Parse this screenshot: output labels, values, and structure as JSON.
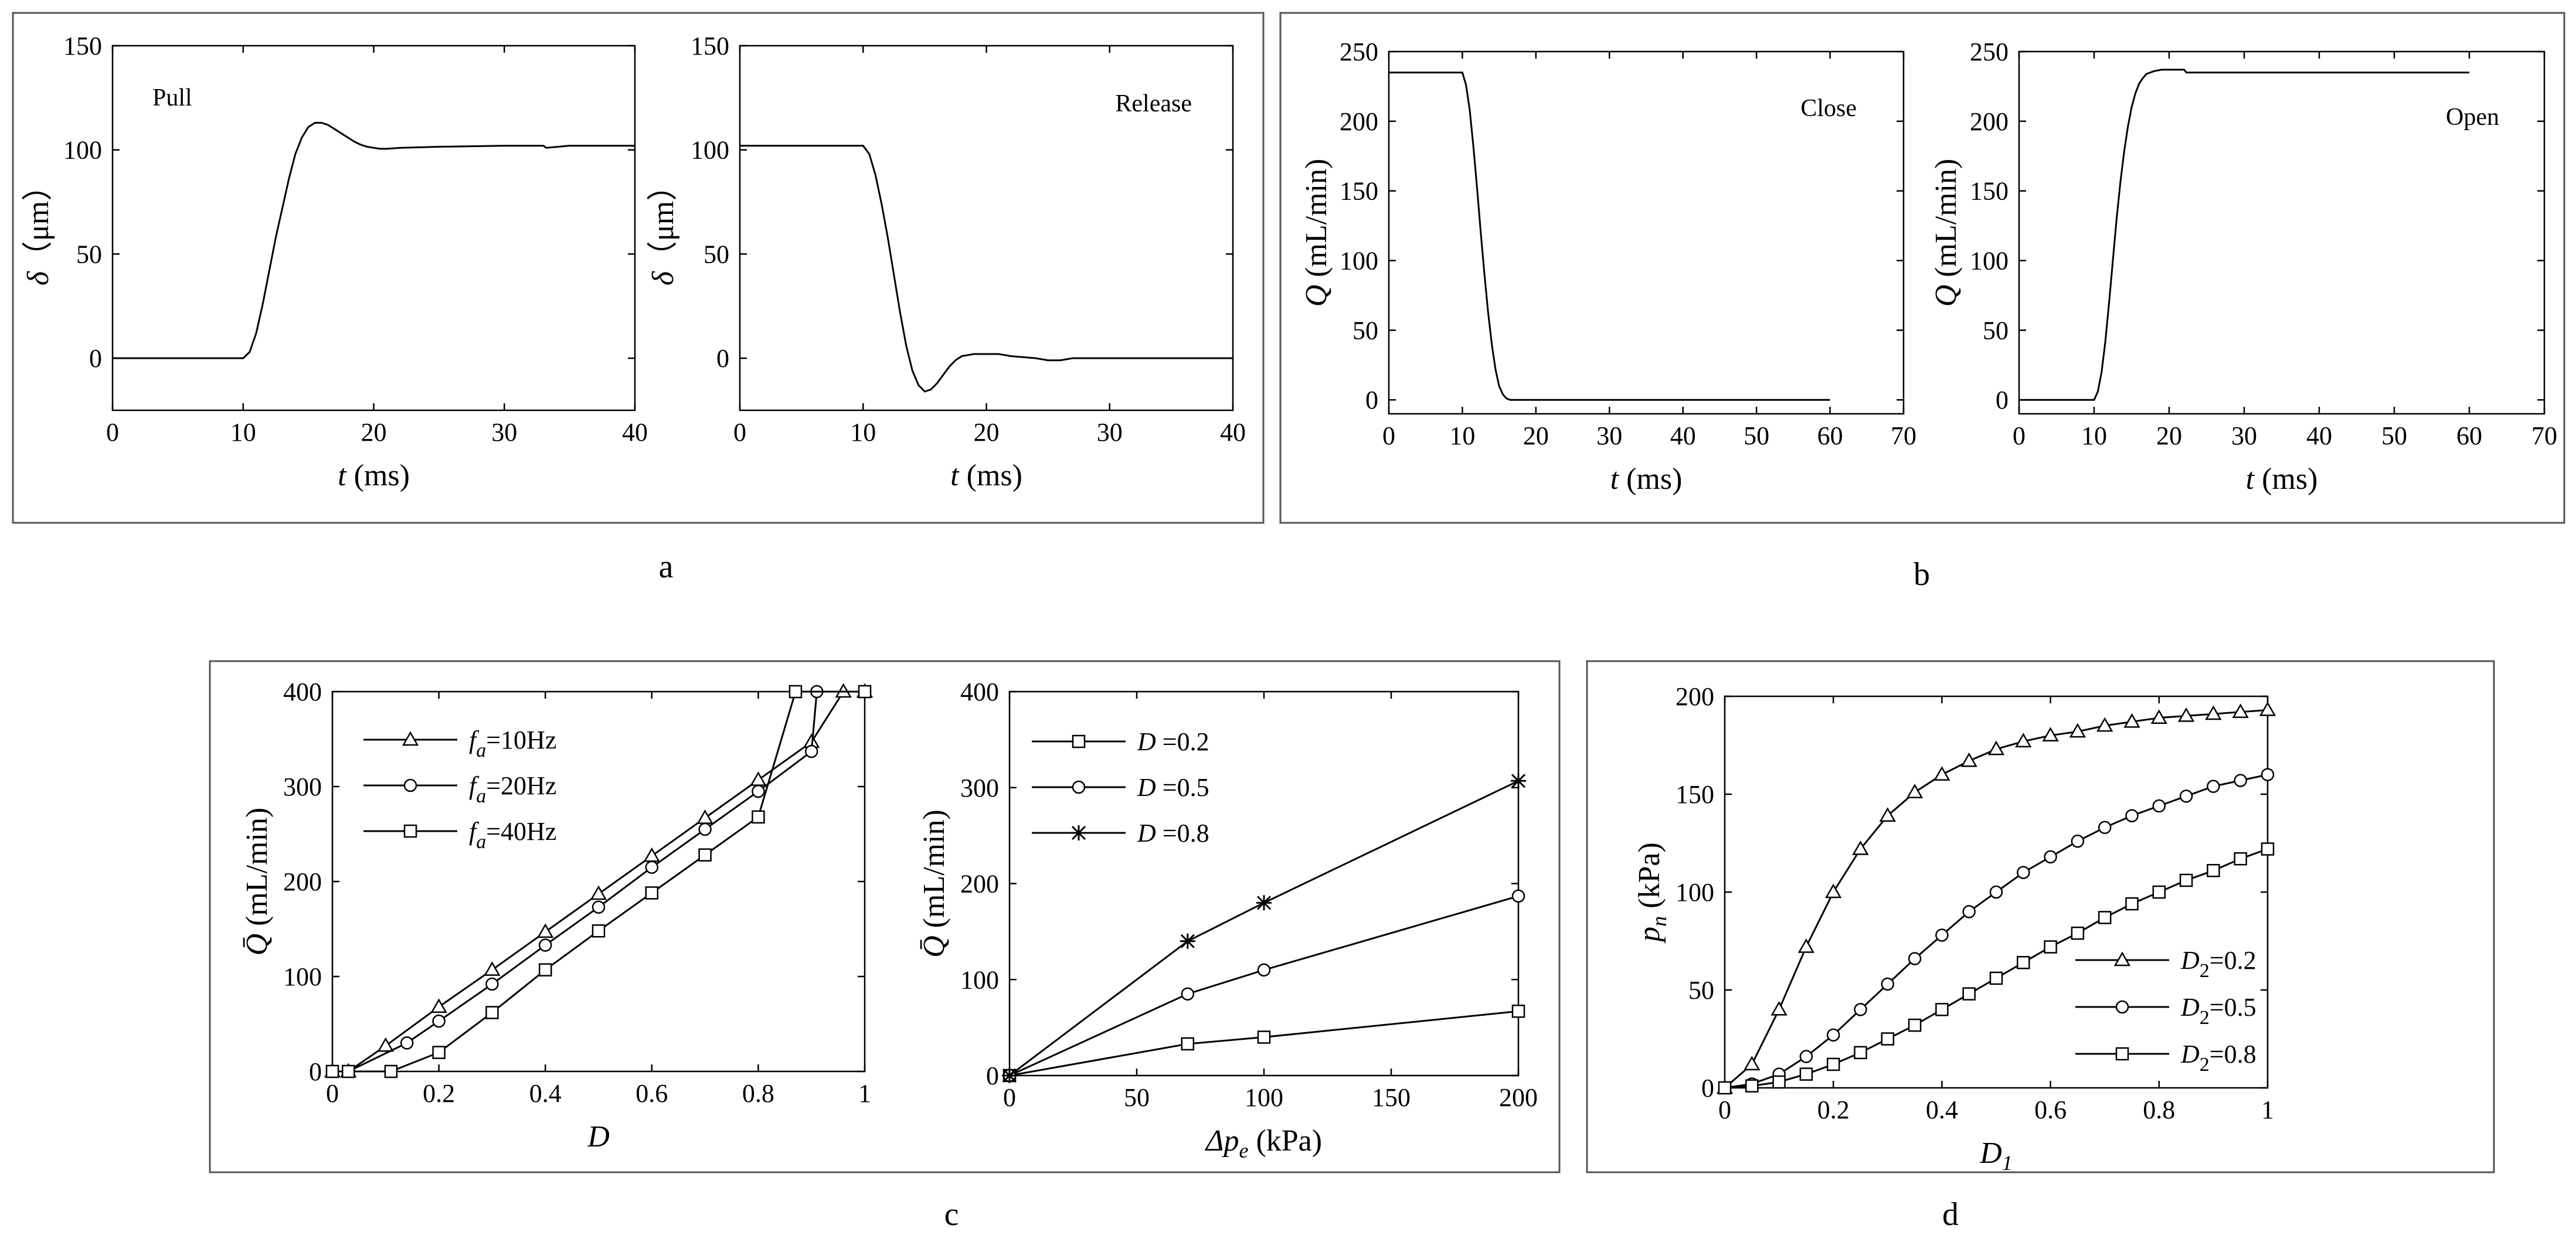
{
  "panel_letters": {
    "a": "a",
    "b": "b",
    "c": "c",
    "d": "d"
  },
  "chart_data": [
    {
      "id": "a1",
      "type": "line",
      "panel": "a",
      "xlabel": {
        "var": "t",
        "unit": " (ms)"
      },
      "ylabel": {
        "var": "δ",
        "unit": "（μm）"
      },
      "annotation": "Pull",
      "xlim": [
        0,
        40
      ],
      "ylim": [
        -25,
        150
      ],
      "xticks": [
        0,
        10,
        20,
        30,
        40
      ],
      "yticks": [
        0,
        50,
        100,
        150
      ],
      "series": [
        {
          "name": "δ",
          "x": [
            0,
            10,
            10.5,
            11,
            11.5,
            12,
            12.5,
            13,
            13.5,
            14,
            14.5,
            15,
            15.5,
            16,
            16.5,
            17,
            17.5,
            18,
            18.5,
            19,
            19.5,
            20,
            20.5,
            21,
            22,
            25,
            30,
            33,
            33.2,
            35,
            40
          ],
          "y": [
            0,
            0,
            3,
            12,
            26,
            42,
            58,
            72,
            86,
            98,
            106,
            111,
            113,
            113,
            112,
            110,
            108,
            106,
            104,
            102.5,
            101.5,
            101,
            100.5,
            100.5,
            101,
            101.5,
            102,
            102,
            101,
            102,
            102
          ]
        }
      ]
    },
    {
      "id": "a2",
      "type": "line",
      "panel": "a",
      "xlabel": {
        "var": "t",
        "unit": " (ms)"
      },
      "ylabel": {
        "var": "δ",
        "unit": "（μm）"
      },
      "annotation": "Release",
      "xlim": [
        0,
        40
      ],
      "ylim": [
        -25,
        150
      ],
      "xticks": [
        0,
        10,
        20,
        30,
        40
      ],
      "yticks": [
        0,
        50,
        100,
        150
      ],
      "series": [
        {
          "name": "δ",
          "x": [
            0,
            10,
            10.5,
            11,
            11.5,
            12,
            12.5,
            13,
            13.5,
            14,
            14.5,
            15,
            15.5,
            16,
            16.5,
            17,
            17.5,
            18,
            19,
            20,
            21,
            22,
            23,
            24,
            25,
            26,
            27,
            30,
            35,
            40
          ],
          "y": [
            102,
            102,
            98,
            88,
            74,
            58,
            40,
            22,
            6,
            -6,
            -13,
            -16,
            -15,
            -12,
            -8,
            -4,
            -1,
            1,
            2,
            2,
            2,
            1,
            0.5,
            0,
            -1,
            -1,
            0,
            0,
            0,
            0
          ]
        }
      ]
    },
    {
      "id": "b1",
      "type": "line",
      "panel": "b",
      "xlabel": {
        "var": "t",
        "unit": " (ms)"
      },
      "ylabel": {
        "var": "Q",
        "unit": " (mL/min)"
      },
      "annotation": "Close",
      "xlim": [
        0,
        70
      ],
      "ylim": [
        -10,
        250
      ],
      "xticks": [
        0,
        10,
        20,
        30,
        40,
        50,
        60,
        70
      ],
      "yticks": [
        0,
        50,
        100,
        150,
        200,
        250
      ],
      "series": [
        {
          "name": "Q",
          "x": [
            0,
            10,
            10.5,
            11,
            11.5,
            12,
            12.5,
            13,
            13.5,
            14,
            14.5,
            15,
            15.5,
            16,
            16.5,
            17,
            18,
            20,
            30,
            40,
            50,
            60
          ],
          "y": [
            235,
            235,
            226,
            208,
            182,
            152,
            120,
            90,
            63,
            40,
            22,
            10,
            4,
            1,
            0,
            0,
            0,
            0,
            0,
            0,
            0,
            0
          ]
        }
      ]
    },
    {
      "id": "b2",
      "type": "line",
      "panel": "b",
      "xlabel": {
        "var": "t",
        "unit": " (ms)"
      },
      "ylabel": {
        "var": "Q",
        "unit": " (mL/min)"
      },
      "annotation": "Open",
      "xlim": [
        0,
        70
      ],
      "ylim": [
        -10,
        250
      ],
      "xticks": [
        0,
        10,
        20,
        30,
        40,
        50,
        60,
        70
      ],
      "yticks": [
        0,
        50,
        100,
        150,
        200,
        250
      ],
      "series": [
        {
          "name": "Q",
          "x": [
            0,
            10,
            10.5,
            11,
            11.5,
            12,
            12.5,
            13,
            13.5,
            14,
            14.5,
            15,
            15.5,
            16,
            16.5,
            17,
            17.5,
            18,
            19,
            20,
            22,
            22.3,
            30,
            40,
            50,
            60
          ],
          "y": [
            0,
            0,
            6,
            20,
            42,
            70,
            100,
            130,
            156,
            178,
            196,
            210,
            220,
            227,
            231,
            234,
            235,
            236,
            237,
            237,
            237,
            235,
            235,
            235,
            235,
            235
          ]
        }
      ]
    },
    {
      "id": "c1",
      "type": "line",
      "panel": "c",
      "xlabel": {
        "var": "D",
        "unit": ""
      },
      "ylabel": {
        "var": "Q̄",
        "unit": " (mL/min)"
      },
      "xlim": [
        0,
        1
      ],
      "ylim": [
        0,
        400
      ],
      "xticks": [
        0,
        0.2,
        0.4,
        0.6,
        0.8,
        1
      ],
      "yticks": [
        0,
        100,
        200,
        300,
        400
      ],
      "legend_position": "top-left",
      "series": [
        {
          "name": "f_a=10Hz",
          "label_main": "f",
          "label_sub": "a",
          "label_rest": "=10Hz",
          "marker": "triangle",
          "x": [
            0,
            0.03,
            0.1,
            0.2,
            0.3,
            0.4,
            0.5,
            0.6,
            0.7,
            0.8,
            0.9,
            0.96,
            1.0
          ],
          "y": [
            0,
            0,
            27,
            68,
            107,
            147,
            187,
            227,
            267,
            307,
            347,
            400,
            400
          ]
        },
        {
          "name": "f_a=20Hz",
          "label_main": "f",
          "label_sub": "a",
          "label_rest": "=20Hz",
          "marker": "circle",
          "x": [
            0,
            0.03,
            0.14,
            0.2,
            0.3,
            0.4,
            0.5,
            0.6,
            0.7,
            0.8,
            0.9,
            0.91,
            1.0
          ],
          "y": [
            0,
            0,
            30,
            53,
            92,
            133,
            173,
            215,
            255,
            295,
            337,
            400,
            400
          ]
        },
        {
          "name": "f_a=40Hz",
          "label_main": "f",
          "label_sub": "a",
          "label_rest": "=40Hz",
          "marker": "square",
          "x": [
            0,
            0.03,
            0.11,
            0.2,
            0.3,
            0.4,
            0.5,
            0.6,
            0.7,
            0.8,
            0.87,
            1.0
          ],
          "y": [
            0,
            0,
            0,
            20,
            62,
            107,
            148,
            188,
            228,
            268,
            400,
            400
          ]
        }
      ]
    },
    {
      "id": "c2",
      "type": "line",
      "panel": "c",
      "xlabel": {
        "var": "Δp",
        "sub": "e",
        "unit": " (kPa)"
      },
      "ylabel": {
        "var": "Q̄",
        "unit": " (mL/min)"
      },
      "xlim": [
        0,
        200
      ],
      "ylim": [
        0,
        400
      ],
      "xticks": [
        0,
        50,
        100,
        150,
        200
      ],
      "yticks": [
        0,
        100,
        200,
        300,
        400
      ],
      "legend_position": "top-left",
      "series": [
        {
          "name": "D=0.2",
          "label_main": "D",
          "label_rest": " =0.2",
          "marker": "square",
          "x": [
            0,
            70,
            100,
            200
          ],
          "y": [
            0,
            33,
            40,
            67
          ]
        },
        {
          "name": "D=0.5",
          "label_main": "D",
          "label_rest": " =0.5",
          "marker": "circle",
          "x": [
            0,
            70,
            100,
            200
          ],
          "y": [
            0,
            85,
            110,
            187
          ]
        },
        {
          "name": "D=0.8",
          "label_main": "D",
          "label_rest": " =0.8",
          "marker": "star",
          "x": [
            0,
            70,
            100,
            200
          ],
          "y": [
            0,
            140,
            180,
            307
          ]
        }
      ]
    },
    {
      "id": "d1",
      "type": "line",
      "panel": "d",
      "xlabel": {
        "var": "D",
        "sub": "1",
        "unit": ""
      },
      "ylabel": {
        "var": "p",
        "sub": "n",
        "unit": " (kPa)"
      },
      "xlim": [
        0,
        1
      ],
      "ylim": [
        0,
        200
      ],
      "xticks": [
        0,
        0.2,
        0.4,
        0.6,
        0.8,
        1
      ],
      "yticks": [
        0,
        50,
        100,
        150,
        200
      ],
      "legend_position": "bottom-right",
      "series": [
        {
          "name": "D2=0.2",
          "label_main": "D",
          "label_sub": "2",
          "label_rest": "=0.2",
          "marker": "triangle",
          "x": [
            0,
            0.05,
            0.1,
            0.15,
            0.2,
            0.25,
            0.3,
            0.35,
            0.4,
            0.45,
            0.5,
            0.55,
            0.6,
            0.65,
            0.7,
            0.75,
            0.8,
            0.85,
            0.9,
            0.95,
            1.0
          ],
          "y": [
            0,
            12,
            40,
            72,
            100,
            122,
            139,
            151,
            160,
            167,
            173,
            177,
            180,
            182,
            185,
            187,
            189,
            190,
            191,
            192,
            193
          ]
        },
        {
          "name": "D2=0.5",
          "label_main": "D",
          "label_sub": "2",
          "label_rest": "=0.5",
          "marker": "circle",
          "x": [
            0,
            0.05,
            0.1,
            0.15,
            0.2,
            0.25,
            0.3,
            0.35,
            0.4,
            0.45,
            0.5,
            0.55,
            0.6,
            0.65,
            0.7,
            0.75,
            0.8,
            0.85,
            0.9,
            0.95,
            1.0
          ],
          "y": [
            0,
            2,
            7,
            16,
            27,
            40,
            53,
            66,
            78,
            90,
            100,
            110,
            118,
            126,
            133,
            139,
            144,
            149,
            154,
            157,
            160
          ]
        },
        {
          "name": "D2=0.8",
          "label_main": "D",
          "label_sub": "2",
          "label_rest": "=0.8",
          "marker": "square",
          "x": [
            0,
            0.05,
            0.1,
            0.15,
            0.2,
            0.25,
            0.3,
            0.35,
            0.4,
            0.45,
            0.5,
            0.55,
            0.6,
            0.65,
            0.7,
            0.75,
            0.8,
            0.85,
            0.9,
            0.95,
            1.0
          ],
          "y": [
            0,
            1,
            3,
            7,
            12,
            18,
            25,
            32,
            40,
            48,
            56,
            64,
            72,
            79,
            87,
            94,
            100,
            106,
            111,
            117,
            122
          ]
        }
      ]
    }
  ]
}
